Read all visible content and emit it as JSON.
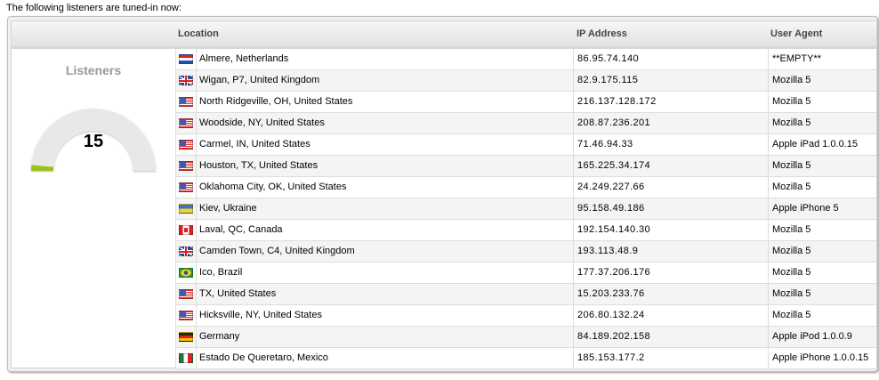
{
  "intro": "The following listeners are tuned-in now:",
  "columns": {
    "location": "Location",
    "ip": "IP Address",
    "agent": "User Agent"
  },
  "gauge": {
    "title": "Listeners",
    "value": 15,
    "max": 500,
    "fill_color": "#9ac21a",
    "track_color": "#e8e8e8"
  },
  "rows": [
    {
      "flag": "nl",
      "location": "Almere, Netherlands",
      "ip": "86.95.74.140",
      "agent": "**EMPTY**"
    },
    {
      "flag": "gb",
      "location": "Wigan, P7, United Kingdom",
      "ip": "82.9.175.115",
      "agent": "Mozilla 5"
    },
    {
      "flag": "us",
      "location": "North Ridgeville, OH, United States",
      "ip": "216.137.128.172",
      "agent": "Mozilla 5"
    },
    {
      "flag": "us",
      "location": "Woodside, NY, United States",
      "ip": "208.87.236.201",
      "agent": "Mozilla 5"
    },
    {
      "flag": "us",
      "location": "Carmel, IN, United States",
      "ip": "71.46.94.33",
      "agent": "Apple iPad 1.0.0.15"
    },
    {
      "flag": "us",
      "location": "Houston, TX, United States",
      "ip": "165.225.34.174",
      "agent": "Mozilla 5"
    },
    {
      "flag": "us",
      "location": "Oklahoma City, OK, United States",
      "ip": "24.249.227.66",
      "agent": "Mozilla 5"
    },
    {
      "flag": "ua",
      "location": "Kiev, Ukraine",
      "ip": "95.158.49.186",
      "agent": "Apple iPhone 5"
    },
    {
      "flag": "ca",
      "location": "Laval, QC, Canada",
      "ip": "192.154.140.30",
      "agent": "Mozilla 5"
    },
    {
      "flag": "gb",
      "location": "Camden Town, C4, United Kingdom",
      "ip": "193.113.48.9",
      "agent": "Mozilla 5"
    },
    {
      "flag": "br",
      "location": "Ico, Brazil",
      "ip": "177.37.206.176",
      "agent": "Mozilla 5"
    },
    {
      "flag": "us",
      "location": "TX, United States",
      "ip": "15.203.233.76",
      "agent": "Mozilla 5"
    },
    {
      "flag": "us",
      "location": "Hicksville, NY, United States",
      "ip": "206.80.132.24",
      "agent": "Mozilla 5"
    },
    {
      "flag": "de",
      "location": "Germany",
      "ip": "84.189.202.158",
      "agent": "Apple iPod 1.0.0.9"
    },
    {
      "flag": "mx",
      "location": "Estado De Queretaro, Mexico",
      "ip": "185.153.177.2",
      "agent": "Apple iPhone 1.0.0.15"
    }
  ]
}
